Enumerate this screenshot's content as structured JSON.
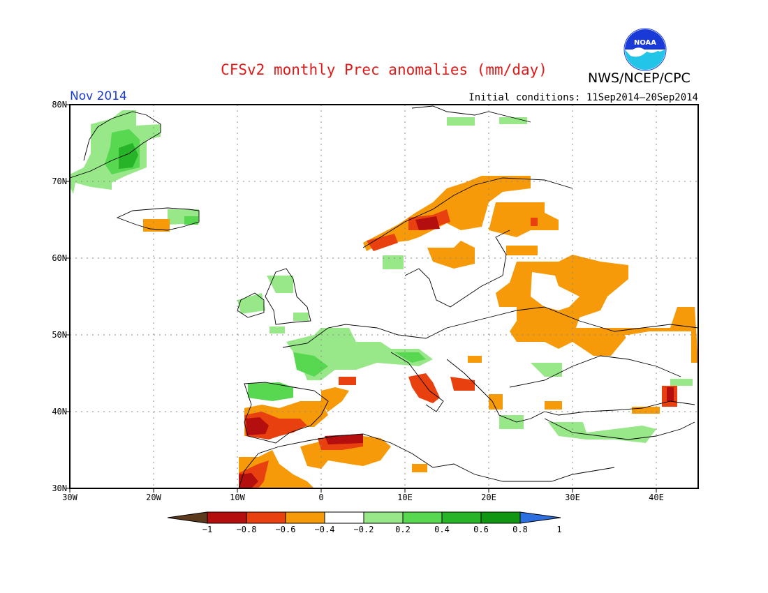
{
  "title": "CFSv2 monthly Prec anomalies (mm/day)",
  "organization": "NWS/NCEP/CPC",
  "logo_text": "NOAA",
  "forecast_month": "Nov 2014",
  "initial_conditions": "Initial conditions: 11Sep2014–20Sep2014",
  "map": {
    "region": "Europe",
    "lon_range": [
      -30,
      45
    ],
    "lat_range": [
      30,
      80
    ],
    "lat_labels": [
      "80N",
      "70N",
      "60N",
      "50N",
      "40N",
      "30N"
    ],
    "lon_labels": [
      "30W",
      "20W",
      "10W",
      "0",
      "10E",
      "20E",
      "30E",
      "40E"
    ],
    "gridlines": "dotted"
  },
  "colorbar": {
    "labels": [
      "−1",
      "−0.8",
      "−0.6",
      "−0.4",
      "−0.2",
      "0.2",
      "0.4",
      "0.6",
      "0.8",
      "1"
    ],
    "colors": [
      "#5c3a1e",
      "#b50e0e",
      "#e8400f",
      "#f79a0a",
      "#ffffff",
      "#98e88a",
      "#58d850",
      "#28b428",
      "#119611",
      "#2e6fe0"
    ]
  }
}
